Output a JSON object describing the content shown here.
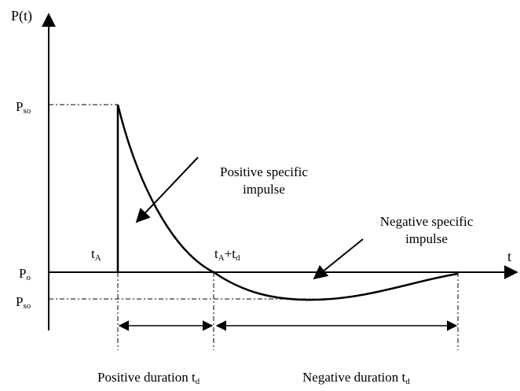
{
  "axes": {
    "y_label": "P(t)",
    "x_label": "t"
  },
  "pressure_labels": {
    "peak": {
      "text": "P",
      "sub": "so"
    },
    "ambient": {
      "text": "P",
      "sub": "o"
    },
    "negative_peak": {
      "text": "P",
      "sub": "so"
    }
  },
  "time_labels": {
    "arrival": {
      "text": "t",
      "sub": "A"
    },
    "end": [
      {
        "text": "t",
        "sub": "A"
      },
      {
        "text": "+t",
        "sub": "d"
      }
    ]
  },
  "annotations": {
    "positive_impulse": [
      "Positive specific",
      "impulse"
    ],
    "negative_impulse": [
      "Negative specific",
      "impulse"
    ]
  },
  "durations": {
    "positive": {
      "text": "Positive duration t",
      "sub": "d"
    },
    "negative": {
      "text": "Negative duration t",
      "sub": "d"
    }
  }
}
